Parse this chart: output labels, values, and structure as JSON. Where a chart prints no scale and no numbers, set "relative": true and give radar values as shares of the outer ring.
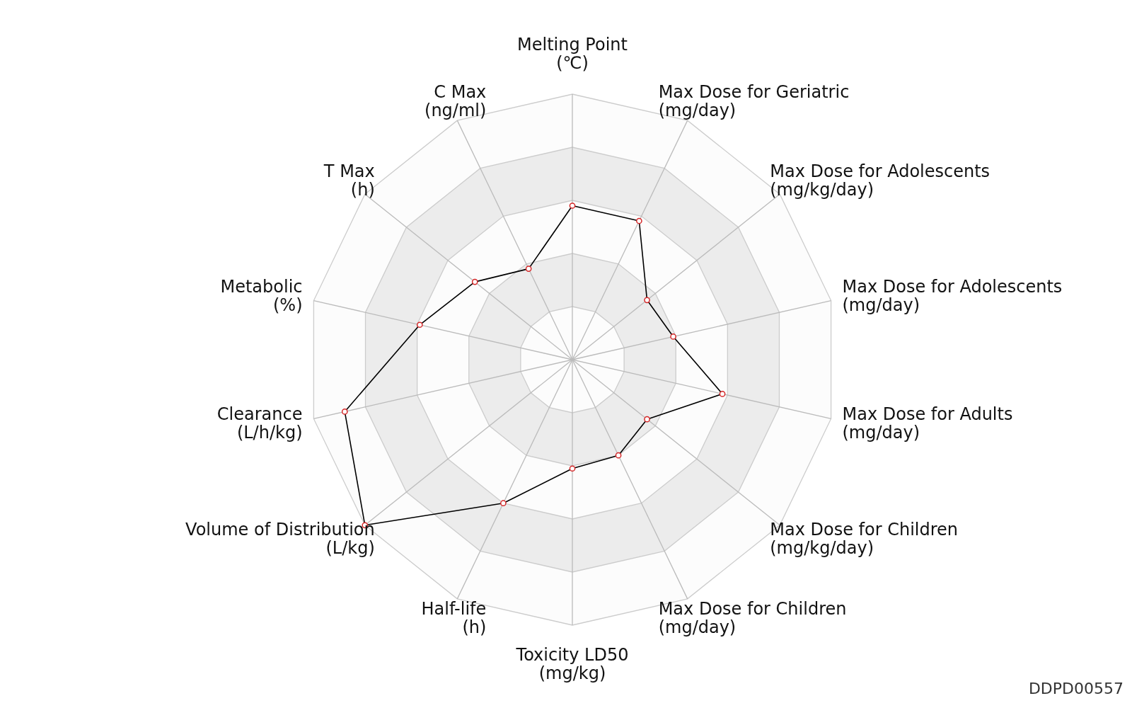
{
  "chart_data": {
    "type": "radar",
    "relative": true,
    "categories": [
      "Melting Point\n(℃)",
      "Max Dose for Geriatric\n(mg/day)",
      "Max Dose for Adolescents\n(mg/kg/day)",
      "Max Dose for Adolescents\n(mg/day)",
      "Max Dose for Adults\n(mg/day)",
      "Max Dose for Children\n(mg/kg/day)",
      "Max Dose for Children\n(mg/day)",
      "Toxicity LD50\n(mg/kg)",
      "Half-life\n(h)",
      "Volume of Distribution\n(L/kg)",
      "Clearance\n(L/h/kg)",
      "Metabolic\n(%)",
      "T Max\n(h)",
      "C Max\n(ng/ml)"
    ],
    "series": [
      {
        "color": "#000000",
        "values": [
          0.58,
          0.58,
          0.36,
          0.39,
          0.58,
          0.36,
          0.4,
          0.41,
          0.6,
          1.0,
          0.88,
          0.59,
          0.47,
          0.38
        ]
      }
    ],
    "marker": "circle",
    "annotations": [
      "DDPD00557"
    ]
  }
}
